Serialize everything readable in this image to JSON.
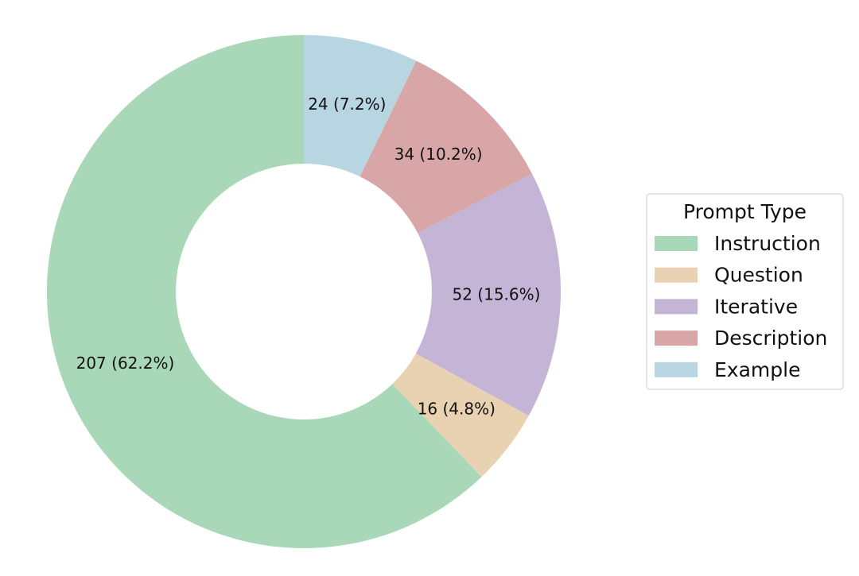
{
  "chart_data": {
    "type": "pie",
    "variant": "donut",
    "categories": [
      "Instruction",
      "Question",
      "Iterative",
      "Description",
      "Example"
    ],
    "values": [
      207,
      16,
      52,
      34,
      24
    ],
    "percentages": [
      62.2,
      4.8,
      15.6,
      10.2,
      7.2
    ],
    "labels": [
      "207 (62.2%)",
      "16 (4.8%)",
      "52 (15.6%)",
      "34 (10.2%)",
      "24 (7.2%)"
    ],
    "colors": [
      "#a8d8b8",
      "#e8d2b2",
      "#c4b4d6",
      "#d8a6a6",
      "#b8d6e2"
    ],
    "start": "top",
    "direction": "counterclockwise",
    "legend": {
      "title": "Prompt Type",
      "placement": "right"
    }
  }
}
